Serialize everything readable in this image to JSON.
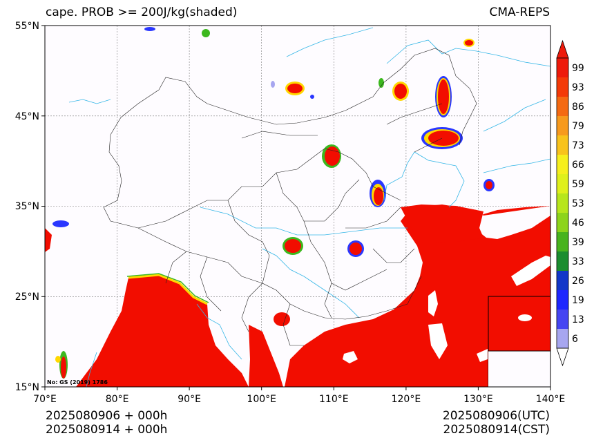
{
  "header": {
    "title_left": "cape. PROB >= 200J/kg(shaded)",
    "title_right": "CMA-REPS"
  },
  "map": {
    "lon_labels": [
      "70°E",
      "80°E",
      "90°E",
      "100°E",
      "110°E",
      "120°E",
      "130°E",
      "140°E"
    ],
    "lat_labels": [
      "55°N",
      "45°N",
      "35°N",
      "25°N",
      "15°N"
    ],
    "approval_number": "No: GS (2019) 1786",
    "prob_colors": {
      "high": "#f20d00",
      "mid": "#ffd800",
      "low": "#2a37ff"
    }
  },
  "colorbar": {
    "levels": [
      "99",
      "93",
      "86",
      "79",
      "73",
      "66",
      "59",
      "53",
      "46",
      "39",
      "33",
      "26",
      "19",
      "13",
      "6"
    ],
    "colors": [
      "#ee1a0b",
      "#f43a08",
      "#f56a12",
      "#f79a1d",
      "#f8c31b",
      "#f6ef1c",
      "#dff01a",
      "#b7e61b",
      "#8dd41b",
      "#48b31e",
      "#1b8d2f",
      "#1237c9",
      "#1f27ff",
      "#4645f2",
      "#a7a6f0"
    ],
    "max_color": "#ee1a0b",
    "min_color": "#ffffff"
  },
  "footer": {
    "init_utc": "2025080906  +  000h",
    "init_cst": "2025080914  +  000h",
    "valid_utc": "2025080906(UTC)",
    "valid_cst": "2025080914(CST)"
  }
}
